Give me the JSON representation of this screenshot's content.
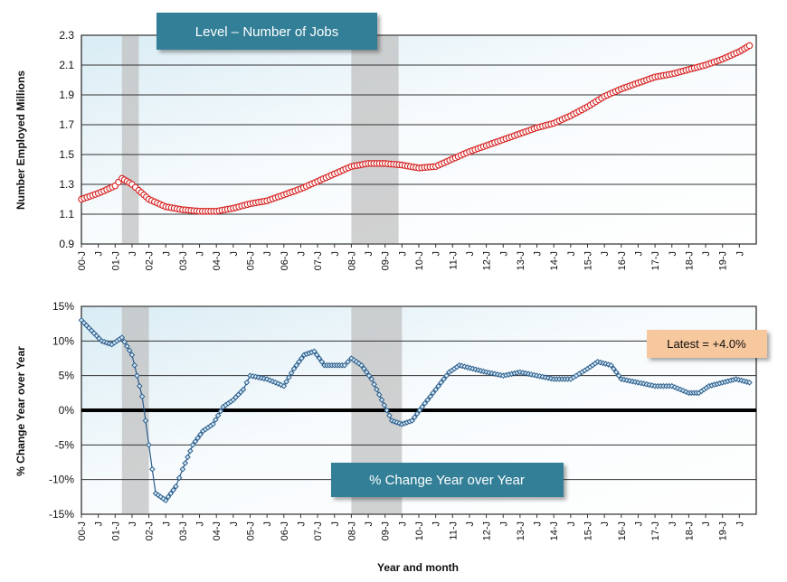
{
  "chart_data": [
    {
      "type": "line",
      "title": "Level – Number of Jobs",
      "xlabel": "",
      "ylabel": "Number Employed Millions",
      "ylim": [
        0.9,
        2.3
      ],
      "yticks": [
        "2.3",
        "2.1",
        "1.9",
        "1.7",
        "1.5",
        "1.3",
        "1.1",
        "0.9"
      ],
      "x_tick_labels": [
        "00-J",
        "J",
        "01-J",
        "J",
        "02-J",
        "J",
        "03-J",
        "J",
        "04-J",
        "J",
        "05-J",
        "J",
        "06-J",
        "J",
        "07-J",
        "J",
        "08-J",
        "J",
        "09-J",
        "J",
        "10-J",
        "J",
        "11-J",
        "J",
        "12-J",
        "J",
        "13-J",
        "J",
        "14-J",
        "J",
        "15-J",
        "J",
        "16-J",
        "J",
        "17-J",
        "J",
        "18-J",
        "J",
        "19-J",
        "J"
      ],
      "recessions": [
        [
          2001.2,
          2001.7
        ],
        [
          2008.0,
          2009.4
        ]
      ],
      "series": [
        {
          "name": "Number Employed",
          "color": "#d62020",
          "x": [
            2000.0,
            2000.5,
            2001.0,
            2001.2,
            2001.5,
            2001.7,
            2002.0,
            2002.5,
            2003.0,
            2003.5,
            2004.0,
            2004.5,
            2005.0,
            2005.5,
            2006.0,
            2006.5,
            2007.0,
            2007.5,
            2008.0,
            2008.5,
            2009.0,
            2009.5,
            2010.0,
            2010.5,
            2011.0,
            2011.5,
            2012.0,
            2012.5,
            2013.0,
            2013.5,
            2014.0,
            2014.5,
            2015.0,
            2015.5,
            2016.0,
            2016.5,
            2017.0,
            2017.5,
            2018.0,
            2018.5,
            2019.0,
            2019.5,
            2019.8
          ],
          "values": [
            1.2,
            1.24,
            1.29,
            1.34,
            1.3,
            1.26,
            1.2,
            1.15,
            1.13,
            1.12,
            1.12,
            1.14,
            1.17,
            1.19,
            1.23,
            1.27,
            1.32,
            1.37,
            1.42,
            1.44,
            1.44,
            1.43,
            1.41,
            1.42,
            1.47,
            1.52,
            1.56,
            1.6,
            1.64,
            1.68,
            1.71,
            1.76,
            1.82,
            1.89,
            1.94,
            1.98,
            2.02,
            2.04,
            2.07,
            2.1,
            2.14,
            2.19,
            2.23
          ]
        }
      ]
    },
    {
      "type": "line",
      "title": "% Change Year over Year",
      "xlabel": "Year and month",
      "ylabel": "% Change Year over Year",
      "ylim": [
        -15,
        15
      ],
      "yticks": [
        "15%",
        "10%",
        "5%",
        "0%",
        "-5%",
        "-10%",
        "-15%"
      ],
      "x_tick_labels": [
        "00-J",
        "J",
        "01-J",
        "J",
        "02-J",
        "J",
        "03-J",
        "J",
        "04-J",
        "J",
        "05-J",
        "J",
        "06-J",
        "J",
        "07-J",
        "J",
        "08-J",
        "J",
        "09-J",
        "J",
        "10-J",
        "J",
        "11-J",
        "J",
        "12-J",
        "J",
        "13-J",
        "J",
        "14-J",
        "J",
        "15-J",
        "J",
        "16-J",
        "J",
        "17-J",
        "J",
        "18-J",
        "J",
        "19-J",
        "J"
      ],
      "recessions": [
        [
          2001.2,
          2002.0
        ],
        [
          2008.0,
          2009.5
        ]
      ],
      "annotation": "Latest = +4.0%",
      "series": [
        {
          "name": "% Change Year over Year",
          "color": "#2b5c8a",
          "x": [
            2000.0,
            2000.3,
            2000.6,
            2000.9,
            2001.2,
            2001.5,
            2001.8,
            2002.0,
            2002.2,
            2002.5,
            2002.8,
            2003.0,
            2003.3,
            2003.6,
            2003.9,
            2004.2,
            2004.5,
            2004.8,
            2005.0,
            2005.5,
            2006.0,
            2006.3,
            2006.6,
            2006.9,
            2007.2,
            2007.5,
            2007.8,
            2008.0,
            2008.3,
            2008.6,
            2008.9,
            2009.2,
            2009.5,
            2009.8,
            2010.1,
            2010.5,
            2010.9,
            2011.2,
            2011.6,
            2012.0,
            2012.5,
            2013.0,
            2013.5,
            2014.0,
            2014.5,
            2015.0,
            2015.3,
            2015.7,
            2016.0,
            2016.5,
            2017.0,
            2017.5,
            2018.0,
            2018.3,
            2018.6,
            2019.0,
            2019.4,
            2019.8
          ],
          "values": [
            13.0,
            11.5,
            10.0,
            9.5,
            10.5,
            8.0,
            2.0,
            -5.0,
            -12.0,
            -13.0,
            -11.0,
            -8.5,
            -5.0,
            -3.0,
            -2.0,
            0.5,
            1.5,
            3.0,
            5.0,
            4.5,
            3.5,
            6.0,
            8.0,
            8.5,
            6.5,
            6.5,
            6.5,
            7.5,
            6.5,
            4.5,
            1.5,
            -1.5,
            -2.0,
            -1.5,
            0.5,
            3.0,
            5.5,
            6.5,
            6.0,
            5.5,
            5.0,
            5.5,
            5.0,
            4.5,
            4.5,
            6.0,
            7.0,
            6.5,
            4.5,
            4.0,
            3.5,
            3.5,
            2.5,
            2.5,
            3.5,
            4.0,
            4.5,
            4.0
          ]
        }
      ]
    }
  ]
}
